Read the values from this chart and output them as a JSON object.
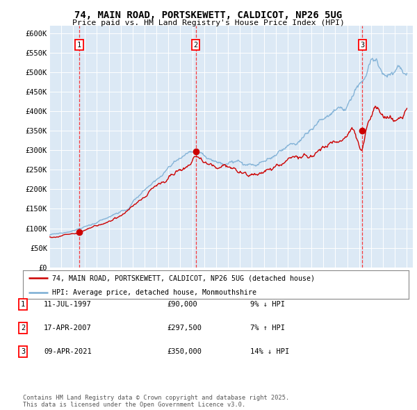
{
  "title": "74, MAIN ROAD, PORTSKEWETT, CALDICOT, NP26 5UG",
  "subtitle": "Price paid vs. HM Land Registry's House Price Index (HPI)",
  "bg_color": "#dce9f5",
  "red_line_color": "#cc0000",
  "blue_line_color": "#7aadd4",
  "y_ticks": [
    0,
    50000,
    100000,
    150000,
    200000,
    250000,
    300000,
    350000,
    400000,
    450000,
    500000,
    550000,
    600000
  ],
  "y_tick_labels": [
    "£0",
    "£50K",
    "£100K",
    "£150K",
    "£200K",
    "£250K",
    "£300K",
    "£350K",
    "£400K",
    "£450K",
    "£500K",
    "£550K",
    "£600K"
  ],
  "sale_dates": [
    1997.53,
    2007.29,
    2021.27
  ],
  "sale_prices": [
    90000,
    297500,
    350000
  ],
  "sale_labels": [
    "1",
    "2",
    "3"
  ],
  "legend_house_label": "74, MAIN ROAD, PORTSKEWETT, CALDICOT, NP26 5UG (detached house)",
  "legend_hpi_label": "HPI: Average price, detached house, Monmouthshire",
  "table_rows": [
    [
      "1",
      "11-JUL-1997",
      "£90,000",
      "9% ↓ HPI"
    ],
    [
      "2",
      "17-APR-2007",
      "£297,500",
      "7% ↑ HPI"
    ],
    [
      "3",
      "09-APR-2021",
      "£350,000",
      "14% ↓ HPI"
    ]
  ],
  "footer": "Contains HM Land Registry data © Crown copyright and database right 2025.\nThis data is licensed under the Open Government Licence v3.0."
}
